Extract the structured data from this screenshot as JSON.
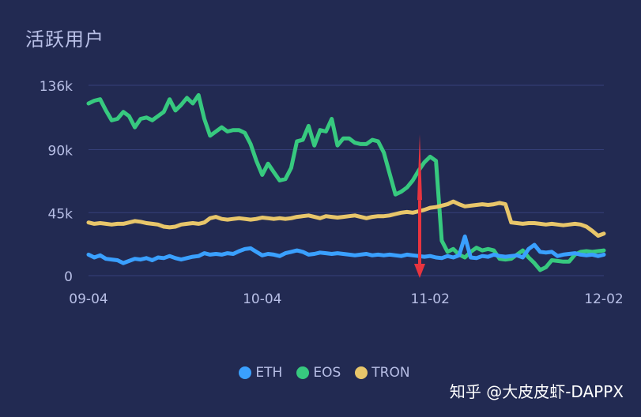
{
  "chart_data": {
    "type": "line",
    "title": "活跃用户",
    "xlabel": "",
    "ylabel": "",
    "ylim": [
      0,
      136000
    ],
    "y_ticks": [
      "0",
      "45k",
      "90k",
      "136k"
    ],
    "y_tick_values": [
      0,
      45000,
      90000,
      136000
    ],
    "x_ticks": [
      "09-04",
      "10-04",
      "11-02",
      "12-02"
    ],
    "x_tick_index": [
      0,
      30,
      59,
      89
    ],
    "x_count": 90,
    "grid": true,
    "legend_position": "bottom-center",
    "series": [
      {
        "name": "ETH",
        "color": "#3aa0ff",
        "values": [
          15000,
          13000,
          14500,
          12000,
          11500,
          11000,
          9000,
          10500,
          12000,
          11500,
          12500,
          11000,
          13000,
          12500,
          14000,
          12500,
          11500,
          12500,
          13500,
          14000,
          16000,
          15000,
          15500,
          15000,
          16000,
          15500,
          17500,
          19000,
          19500,
          17000,
          14500,
          15500,
          15000,
          14000,
          16000,
          17000,
          18000,
          17000,
          15000,
          15500,
          16500,
          16000,
          15500,
          16000,
          15500,
          15000,
          14500,
          15000,
          15500,
          14500,
          15000,
          14500,
          15000,
          14500,
          14000,
          15000,
          14500,
          14000,
          13500,
          14000,
          13000,
          12500,
          14000,
          13000,
          14500,
          28000,
          13000,
          12500,
          14000,
          13500,
          15000,
          14000,
          13500,
          14000,
          14500,
          13000,
          19000,
          22000,
          17000,
          16500,
          17000,
          14000,
          15000,
          15500,
          16000,
          15000,
          14500,
          15000,
          14000,
          15000
        ]
      },
      {
        "name": "EOS",
        "color": "#37c97f",
        "values": [
          123000,
          125000,
          126000,
          118000,
          111000,
          112000,
          117000,
          114000,
          106000,
          112000,
          113000,
          111000,
          114000,
          117000,
          126000,
          118000,
          122000,
          127000,
          123000,
          129000,
          112000,
          100000,
          103000,
          106000,
          103000,
          104000,
          104000,
          102000,
          94000,
          82000,
          72000,
          80000,
          74000,
          68000,
          69000,
          77000,
          96000,
          97000,
          107000,
          93000,
          104000,
          103000,
          112000,
          93000,
          98000,
          98000,
          95000,
          94000,
          94000,
          97000,
          96000,
          88000,
          73000,
          58000,
          60000,
          63000,
          68000,
          75000,
          81000,
          85000,
          82000,
          25000,
          17000,
          19000,
          15000,
          13000,
          17000,
          20000,
          18000,
          19000,
          18000,
          12000,
          11500,
          12000,
          15000,
          18000,
          13000,
          9000,
          4000,
          6000,
          11000,
          10500,
          10000,
          10000,
          15000,
          17000,
          17500,
          17000,
          17500,
          18000
        ]
      },
      {
        "name": "TRON",
        "color": "#e8c66a",
        "values": [
          38000,
          37000,
          37500,
          37000,
          36500,
          37000,
          37000,
          38000,
          39000,
          38500,
          37500,
          37000,
          36500,
          35000,
          34500,
          35000,
          36500,
          37000,
          37500,
          37000,
          38000,
          41000,
          42000,
          40500,
          40000,
          40500,
          41000,
          40500,
          40000,
          40500,
          41500,
          41000,
          40500,
          41000,
          40500,
          41000,
          42000,
          42500,
          43000,
          42000,
          41000,
          42500,
          42000,
          41500,
          42000,
          42500,
          43000,
          42000,
          41000,
          42000,
          42500,
          42500,
          43000,
          44000,
          45000,
          45500,
          45000,
          46000,
          47000,
          48500,
          49000,
          50000,
          51000,
          53000,
          51000,
          49500,
          50000,
          50500,
          51000,
          50500,
          51000,
          52000,
          51000,
          38000,
          37500,
          37000,
          37500,
          37500,
          37000,
          36500,
          37000,
          36500,
          36000,
          36500,
          37000,
          36500,
          35000,
          32000,
          28500,
          30000
        ]
      }
    ]
  },
  "legend": {
    "items": [
      {
        "label": "ETH",
        "color": "#3aa0ff"
      },
      {
        "label": "EOS",
        "color": "#37c97f"
      },
      {
        "label": "TRON",
        "color": "#e8c66a"
      }
    ]
  },
  "watermark": "知乎 @大皮皮虾-DAPPX",
  "annotation": {
    "color": "#e8343f"
  }
}
